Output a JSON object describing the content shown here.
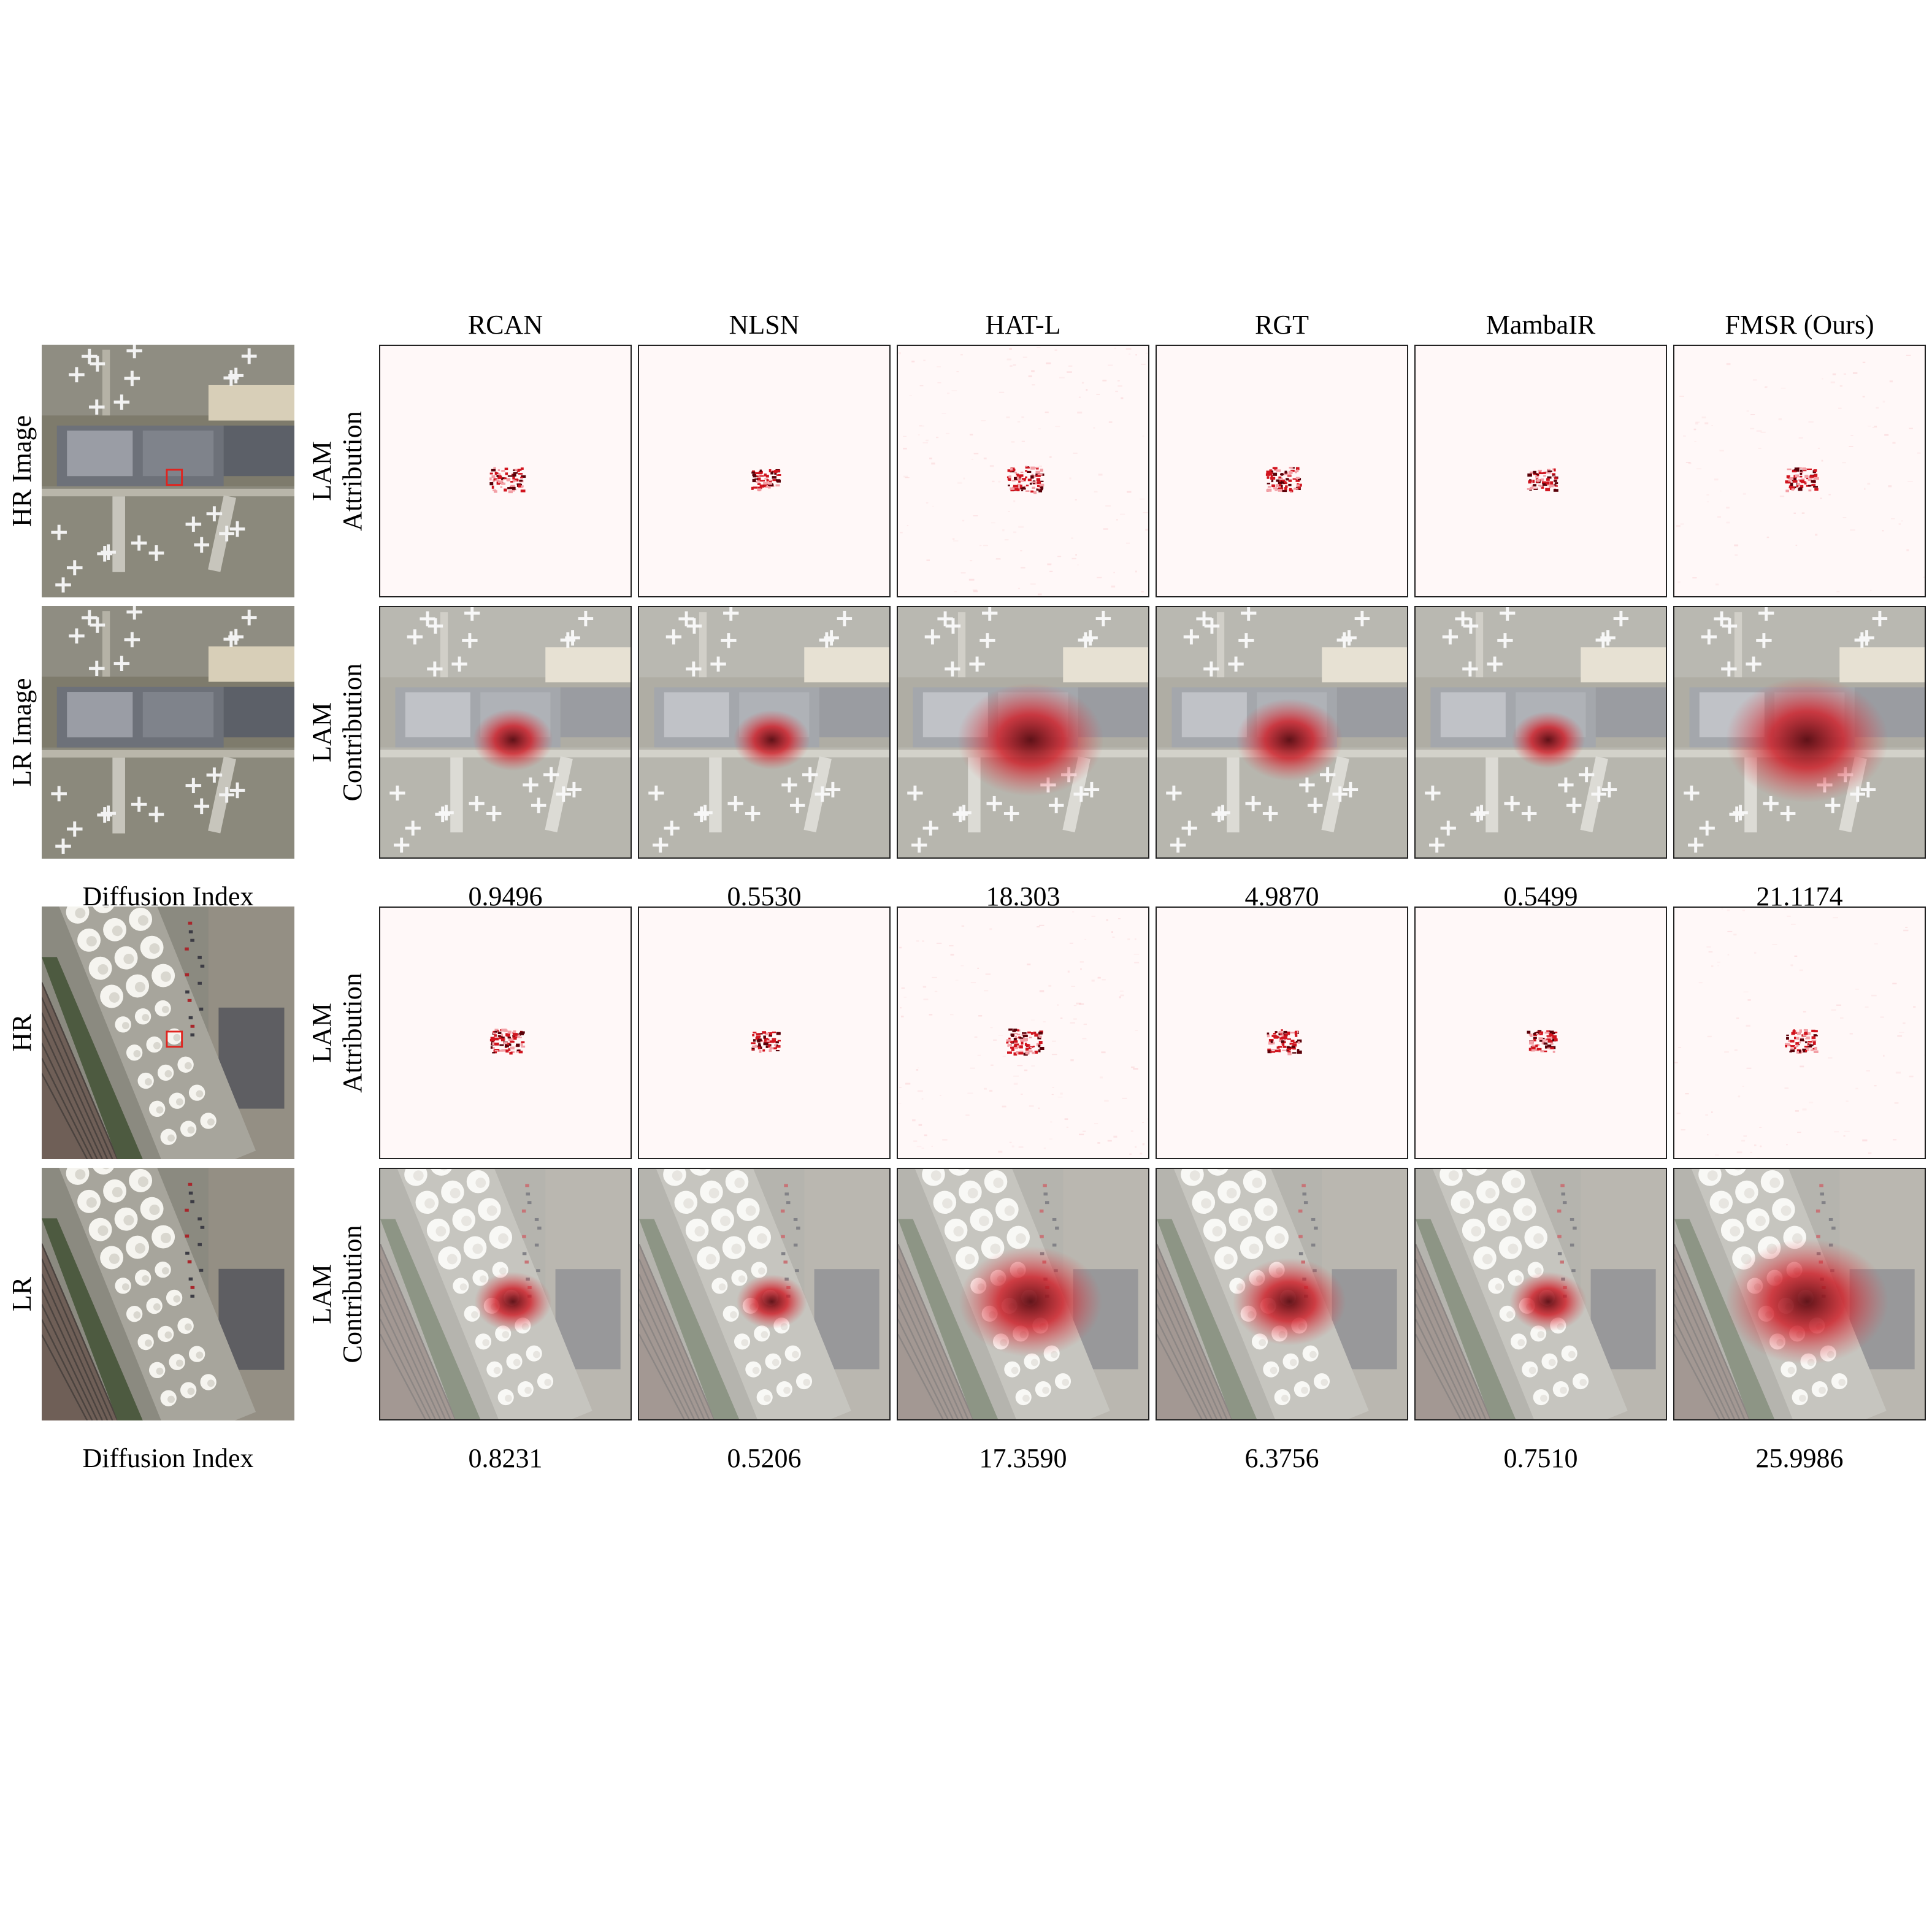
{
  "columns": [
    "RCAN",
    "NLSN",
    "HAT-L",
    "RGT",
    "MambaIR",
    "FMSR (Ours)"
  ],
  "groups": [
    {
      "scene": "airport",
      "hr_label": "HR Image",
      "lr_label": "LR Image",
      "attribution_label": [
        "LAM",
        "Attribution"
      ],
      "contribution_label": [
        "LAM",
        "Contribution"
      ],
      "index_label": "Diffusion Index",
      "diffusion_index": [
        "0.9496",
        "0.5530",
        "18.303",
        "4.9870",
        "0.5499",
        "21.1174"
      ],
      "contribution_spread": [
        0.22,
        0.2,
        0.62,
        0.38,
        0.18,
        0.72
      ]
    },
    {
      "scene": "industrial",
      "hr_label": "HR",
      "lr_label": "LR",
      "attribution_label": [
        "LAM",
        "Attribution"
      ],
      "contribution_label": [
        "LAM",
        "Contribution"
      ],
      "index_label": "Diffusion Index",
      "diffusion_index": [
        "0.8231",
        "0.5206",
        "17.3590",
        "6.3756",
        "0.7510",
        "25.9986"
      ],
      "contribution_spread": [
        0.2,
        0.16,
        0.6,
        0.42,
        0.2,
        0.72
      ]
    }
  ],
  "colors": {
    "heat_dark": "#5a0008",
    "heat_red": "#d1141e",
    "heat_light": "#f3a0a6",
    "box_red": "#e0231e",
    "panel_border": "#222222"
  }
}
